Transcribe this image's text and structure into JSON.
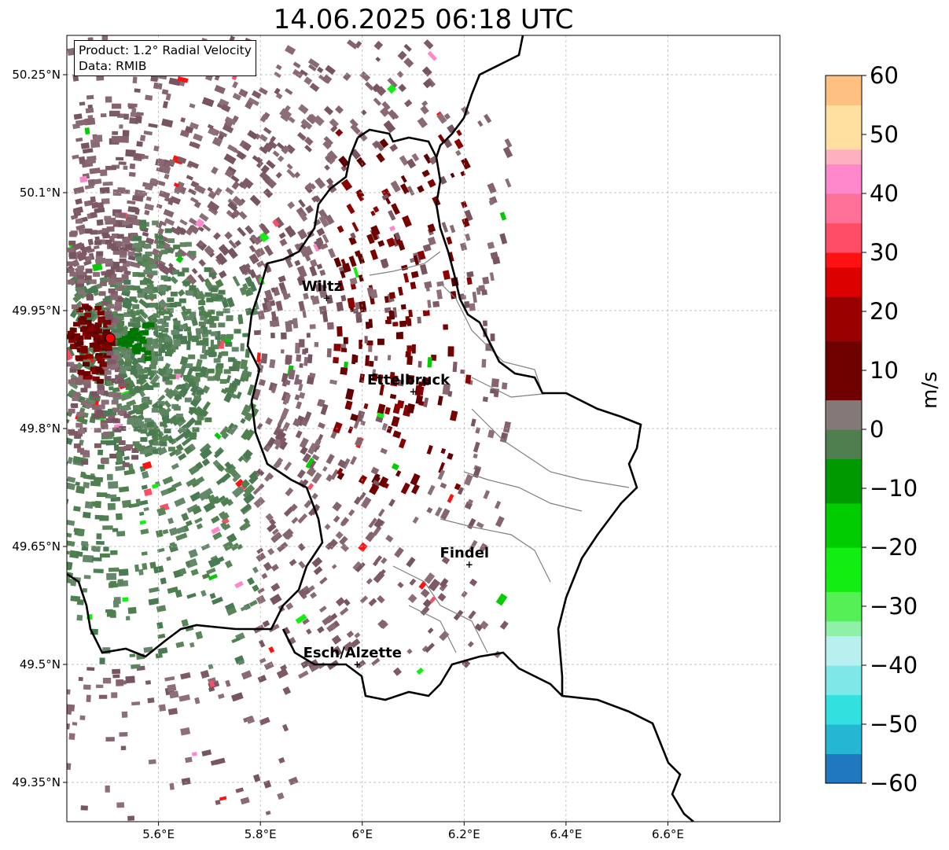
{
  "title": "14.06.2025 06:18 UTC",
  "info": {
    "product": "Product: 1.2° Radial Velocity",
    "source": "Data: RMIB"
  },
  "map": {
    "lon_range": [
      5.42,
      6.82
    ],
    "lat_range": [
      49.3,
      50.3
    ],
    "x_ticks": [
      {
        "value": 5.6,
        "label": "5.6°E"
      },
      {
        "value": 5.8,
        "label": "5.8°E"
      },
      {
        "value": 6.0,
        "label": "6°E"
      },
      {
        "value": 6.2,
        "label": "6.2°E"
      },
      {
        "value": 6.4,
        "label": "6.4°E"
      },
      {
        "value": 6.6,
        "label": "6.6°E"
      }
    ],
    "y_ticks": [
      {
        "value": 50.25,
        "label": "50.25°N"
      },
      {
        "value": 50.1,
        "label": "50.1°N"
      },
      {
        "value": 49.95,
        "label": "49.95°N"
      },
      {
        "value": 49.8,
        "label": "49.8°N"
      },
      {
        "value": 49.65,
        "label": "49.65°N"
      },
      {
        "value": 49.5,
        "label": "49.5°N"
      },
      {
        "value": 49.35,
        "label": "49.35°N"
      }
    ],
    "grid": true,
    "radar_site": {
      "lon": 5.505,
      "lat": 49.915,
      "color": "#ff0000"
    },
    "cities": [
      {
        "name": "Wiltz",
        "lon": 5.93,
        "lat": 49.966
      },
      {
        "name": "Ettelbruck",
        "lon": 6.1,
        "lat": 49.847
      },
      {
        "name": "Findel",
        "lon": 6.21,
        "lat": 49.627
      },
      {
        "name": "Esch/Alzette",
        "lon": 5.99,
        "lat": 49.5
      }
    ]
  },
  "colorbar": {
    "label": "m/s",
    "min": -60,
    "max": 60,
    "ticks": [
      {
        "value": 60,
        "label": "60"
      },
      {
        "value": 50,
        "label": "50"
      },
      {
        "value": 40,
        "label": "40"
      },
      {
        "value": 30,
        "label": "30"
      },
      {
        "value": 20,
        "label": "20"
      },
      {
        "value": 10,
        "label": "10"
      },
      {
        "value": 0,
        "label": "0"
      },
      {
        "value": -10,
        "label": "−10"
      },
      {
        "value": -20,
        "label": "−20"
      },
      {
        "value": -30,
        "label": "−30"
      },
      {
        "value": -40,
        "label": "−40"
      },
      {
        "value": -50,
        "label": "−50"
      },
      {
        "value": -60,
        "label": "−60"
      }
    ],
    "color_stops": [
      {
        "value": -60,
        "color": "#1f78c0"
      },
      {
        "value": -55,
        "color": "#25b6d4"
      },
      {
        "value": -50,
        "color": "#33e0e0"
      },
      {
        "value": -45,
        "color": "#7ee8e8"
      },
      {
        "value": -40,
        "color": "#b8f0f0"
      },
      {
        "value": -36,
        "color": "#8ff0a8"
      },
      {
        "value": -32,
        "color": "#55f055"
      },
      {
        "value": -28,
        "color": "#11ee11"
      },
      {
        "value": -20,
        "color": "#00cc00"
      },
      {
        "value": -12,
        "color": "#009900"
      },
      {
        "value": -6,
        "color": "#006600"
      },
      {
        "value": -5,
        "color": "#4f7f4f"
      },
      {
        "value": -1,
        "color": "#6b8a6b"
      },
      {
        "value": 1,
        "color": "#857878"
      },
      {
        "value": 5,
        "color": "#8a5a66"
      },
      {
        "value": 6,
        "color": "#6e0000"
      },
      {
        "value": 15,
        "color": "#9a0000"
      },
      {
        "value": 22,
        "color": "#dd0000"
      },
      {
        "value": 28,
        "color": "#ff1111"
      },
      {
        "value": 29,
        "color": "#ff4d66"
      },
      {
        "value": 35,
        "color": "#ff7099"
      },
      {
        "value": 40,
        "color": "#ff88cc"
      },
      {
        "value": 44,
        "color": "#ffb0c0"
      },
      {
        "value": 48,
        "color": "#ffe0a0"
      },
      {
        "value": 54,
        "color": "#ffc080"
      },
      {
        "value": 60,
        "color": "#ff9a55"
      }
    ]
  }
}
